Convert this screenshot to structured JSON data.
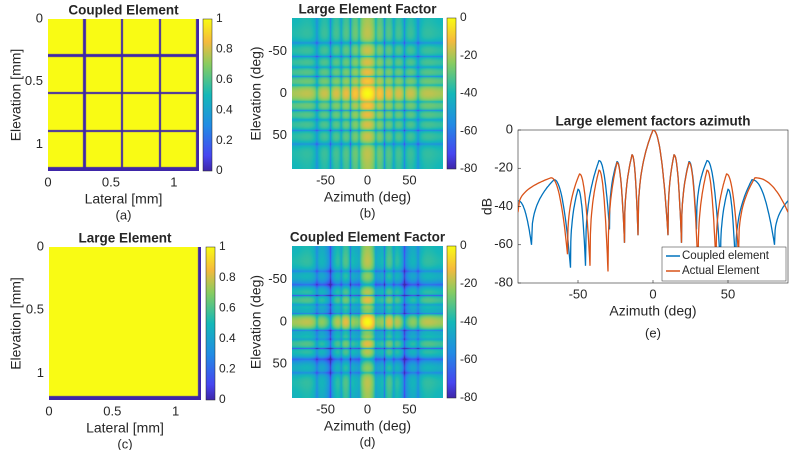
{
  "chart_data": [
    {
      "id": "a",
      "type": "heatmap",
      "title": "Coupled Element",
      "caption": "(a)",
      "xlabel": "Lateral [mm]",
      "ylabel": "Elevation [mm]",
      "xlim": [
        0,
        1.2
      ],
      "ylim": [
        0,
        1.21
      ],
      "y_reversed": true,
      "xticks": [
        0,
        0.5,
        1
      ],
      "xtick_labels": [
        "0",
        "0.5",
        "1"
      ],
      "yticks": [
        0,
        0.5,
        1
      ],
      "ytick_labels": [
        "0",
        "0.5",
        "1"
      ],
      "colormap": "parula",
      "zlim": [
        0,
        1
      ],
      "colorbar_ticks": [
        0,
        0.2,
        0.4,
        0.6,
        0.8,
        1
      ],
      "colorbar_labels": [
        "0",
        "0.2",
        "0.4",
        "0.6",
        "0.8",
        "1"
      ],
      "subelements": {
        "rows": 4,
        "cols": 4,
        "pitch_mm": 0.3,
        "kerf_mm": 0.02,
        "value": 1,
        "kerf_value": 0
      }
    },
    {
      "id": "b",
      "type": "heatmap",
      "title": "Large Element Factor",
      "caption": "(b)",
      "xlabel": "Azimuth (deg)",
      "ylabel": "Elevation (deg)",
      "xlim": [
        -90,
        90
      ],
      "ylim": [
        -90,
        90
      ],
      "y_reversed": true,
      "xticks": [
        -50,
        0,
        50
      ],
      "xtick_labels": [
        "-50",
        "0",
        "50"
      ],
      "yticks": [
        -50,
        0,
        50
      ],
      "ytick_labels": [
        "-50",
        "0",
        "50"
      ],
      "colormap": "parula",
      "zlim": [
        -80,
        0
      ],
      "units": "dB",
      "colorbar_ticks": [
        0,
        -20,
        -40,
        -60,
        -80
      ],
      "colorbar_labels": [
        "0",
        "-20",
        "-40",
        "-60",
        "-80"
      ],
      "first_null_deg": 10
    },
    {
      "id": "c",
      "type": "heatmap",
      "title": "Large Element",
      "caption": "(c)",
      "xlabel": "Lateral [mm]",
      "ylabel": "Elevation [mm]",
      "xlim": [
        0,
        1.2
      ],
      "ylim": [
        0,
        1.21
      ],
      "y_reversed": true,
      "xticks": [
        0,
        0.5,
        1
      ],
      "xtick_labels": [
        "0",
        "0.5",
        "1"
      ],
      "yticks": [
        0,
        0.5,
        1
      ],
      "ytick_labels": [
        "0",
        "0.5",
        "1"
      ],
      "colormap": "parula",
      "zlim": [
        0,
        1
      ],
      "colorbar_ticks": [
        0,
        0.2,
        0.4,
        0.6,
        0.8,
        1
      ],
      "colorbar_labels": [
        "0",
        "0.2",
        "0.4",
        "0.6",
        "0.8",
        "1"
      ],
      "subelements": {
        "rows": 1,
        "cols": 1,
        "pitch_mm": 1.2,
        "kerf_mm": 0.02,
        "value": 1,
        "kerf_value": 0
      }
    },
    {
      "id": "d",
      "type": "heatmap",
      "title": "Coupled Element Factor",
      "caption": "(d)",
      "xlabel": "Azimuth (deg)",
      "ylabel": "Elevation (deg)",
      "xlim": [
        -90,
        90
      ],
      "ylim": [
        -90,
        90
      ],
      "y_reversed": true,
      "xticks": [
        -50,
        0,
        50
      ],
      "xtick_labels": [
        "-50",
        "0",
        "50"
      ],
      "yticks": [
        -50,
        0,
        50
      ],
      "ytick_labels": [
        "-50",
        "0",
        "50"
      ],
      "colormap": "parula",
      "zlim": [
        -80,
        0
      ],
      "units": "dB",
      "colorbar_ticks": [
        0,
        -20,
        -40,
        -60,
        -80
      ],
      "colorbar_labels": [
        "0",
        "-20",
        "-40",
        "-60",
        "-80"
      ],
      "first_null_deg": 10
    },
    {
      "id": "e",
      "type": "line",
      "title": "Large element factors azimuth",
      "caption": "(e)",
      "xlabel": "Azimuth (deg)",
      "ylabel": "dB",
      "xlim": [
        -90,
        90
      ],
      "ylim": [
        -80,
        0
      ],
      "xticks": [
        -50,
        0,
        50
      ],
      "xtick_labels": [
        "-50",
        "0",
        "50"
      ],
      "yticks": [
        0,
        -20,
        -40,
        -60,
        -80
      ],
      "ytick_labels": [
        "0",
        "-20",
        "-40",
        "-60",
        "-80"
      ],
      "grid": false,
      "legend_position": "bottom-right",
      "series": [
        {
          "name": "Coupled element",
          "color": "#0072bd",
          "x": [
            -90,
            -81,
            -66,
            -55,
            -50,
            -45,
            -36,
            -29,
            -24,
            -19,
            -14,
            -10,
            0,
            10,
            14,
            19,
            24,
            29,
            36,
            45,
            50,
            55,
            66,
            81,
            90
          ],
          "y": [
            -37,
            -60,
            -26,
            -72,
            -31,
            -71,
            -16,
            -52,
            -16.5,
            -59,
            -13,
            -55,
            0,
            -55,
            -13,
            -59,
            -16.5,
            -52,
            -16,
            -71,
            -31,
            -72,
            -26,
            -60,
            -37
          ]
        },
        {
          "name": "Actual Element",
          "color": "#d95319",
          "x": [
            -90,
            -68,
            -57,
            -49,
            -42,
            -36,
            -30,
            -24,
            -19,
            -14,
            -10,
            0,
            10,
            14,
            19,
            24,
            30,
            36,
            42,
            49,
            57,
            68,
            90
          ],
          "y": [
            -43,
            -25,
            -65,
            -23,
            -71,
            -21,
            -74,
            -17,
            -59,
            -13,
            -55,
            0,
            -55,
            -13,
            -59,
            -17,
            -74,
            -21,
            -71,
            -23,
            -65,
            -25,
            -43
          ]
        }
      ]
    }
  ]
}
